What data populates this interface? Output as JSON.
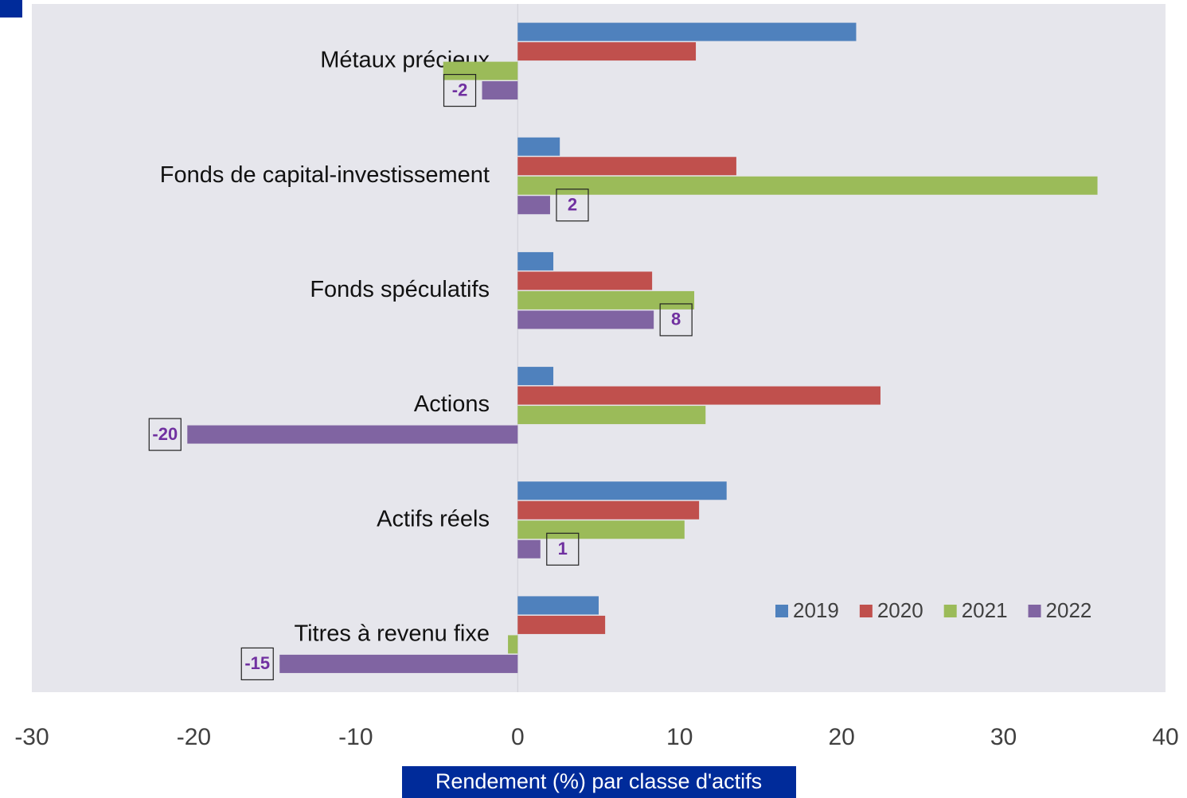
{
  "chart_data": {
    "type": "hbar",
    "x_label": "Rendement (%) par classe d'actifs",
    "categories": [
      "Métaux précieux",
      "Fonds de capital-investissement",
      "Fonds spéculatifs",
      "Actions",
      "Actifs réels",
      "Titres à revenu fixe"
    ],
    "series": [
      {
        "name": "2019",
        "color": "#4f81bd",
        "values": [
          20.9,
          2.6,
          2.2,
          2.2,
          12.9,
          5.0
        ]
      },
      {
        "name": "2020",
        "color": "#c0504d",
        "values": [
          11.0,
          13.5,
          8.3,
          22.4,
          11.2,
          5.4
        ]
      },
      {
        "name": "2021",
        "color": "#9bbb59",
        "values": [
          -4.6,
          35.8,
          10.9,
          11.6,
          10.3,
          -0.6
        ]
      },
      {
        "name": "2022",
        "color": "#8064a2",
        "values": [
          -2.2,
          2.0,
          8.4,
          -20.4,
          1.4,
          -14.7
        ],
        "value_labels": [
          "-2",
          "2",
          "8",
          "-20",
          "1",
          "-15"
        ]
      }
    ],
    "xlim": [
      -30,
      40
    ],
    "xticks": [
      -30,
      -20,
      -10,
      0,
      10,
      20,
      30,
      40
    ],
    "grid": false,
    "legend": "lower right",
    "label_color": "#7030a0"
  }
}
